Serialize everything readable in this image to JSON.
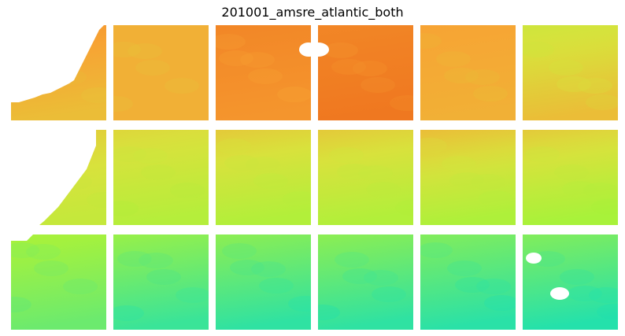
{
  "title": "201001_amsre_atlantic_both",
  "grid": {
    "rows": 3,
    "cols": 6
  },
  "colormap": [
    "#1fe0b0",
    "#a8f23a",
    "#d8e23c",
    "#f7a434",
    "#ea5a12"
  ],
  "tiles": [
    [
      {
        "top": 0.2,
        "bottom": 0.35,
        "mask": "coast-top",
        "hole": null
      },
      {
        "top": 0.3,
        "bottom": 0.3,
        "mask": "coast-edge",
        "hole": null
      },
      {
        "top": 0.15,
        "bottom": 0.2,
        "mask": null,
        "hole": "right-top"
      },
      {
        "top": 0.15,
        "bottom": 0.1,
        "mask": null,
        "hole": "left-top"
      },
      {
        "top": 0.25,
        "bottom": 0.3,
        "mask": null,
        "hole": null
      },
      {
        "top": 0.55,
        "bottom": 0.35,
        "mask": null,
        "hole": null
      }
    ],
    [
      {
        "top": 0.4,
        "bottom": 0.6,
        "mask": "coast-mid",
        "hole": null
      },
      {
        "top": 0.45,
        "bottom": 0.68,
        "mask": null,
        "hole": null
      },
      {
        "top": 0.4,
        "bottom": 0.7,
        "mask": null,
        "hole": null
      },
      {
        "top": 0.4,
        "bottom": 0.7,
        "mask": null,
        "hole": null
      },
      {
        "top": 0.35,
        "bottom": 0.72,
        "mask": null,
        "hole": null
      },
      {
        "top": 0.4,
        "bottom": 0.75,
        "mask": null,
        "hole": null
      }
    ],
    [
      {
        "top": 0.74,
        "bottom": 0.86,
        "mask": "coast-low",
        "hole": null
      },
      {
        "top": 0.78,
        "bottom": 0.95,
        "mask": null,
        "hole": null
      },
      {
        "top": 0.8,
        "bottom": 0.97,
        "mask": null,
        "hole": null
      },
      {
        "top": 0.8,
        "bottom": 0.97,
        "mask": null,
        "hole": null
      },
      {
        "top": 0.82,
        "bottom": 0.98,
        "mask": null,
        "hole": null
      },
      {
        "top": 0.82,
        "bottom": 0.99,
        "mask": null,
        "hole": "two-blobs"
      }
    ]
  ]
}
